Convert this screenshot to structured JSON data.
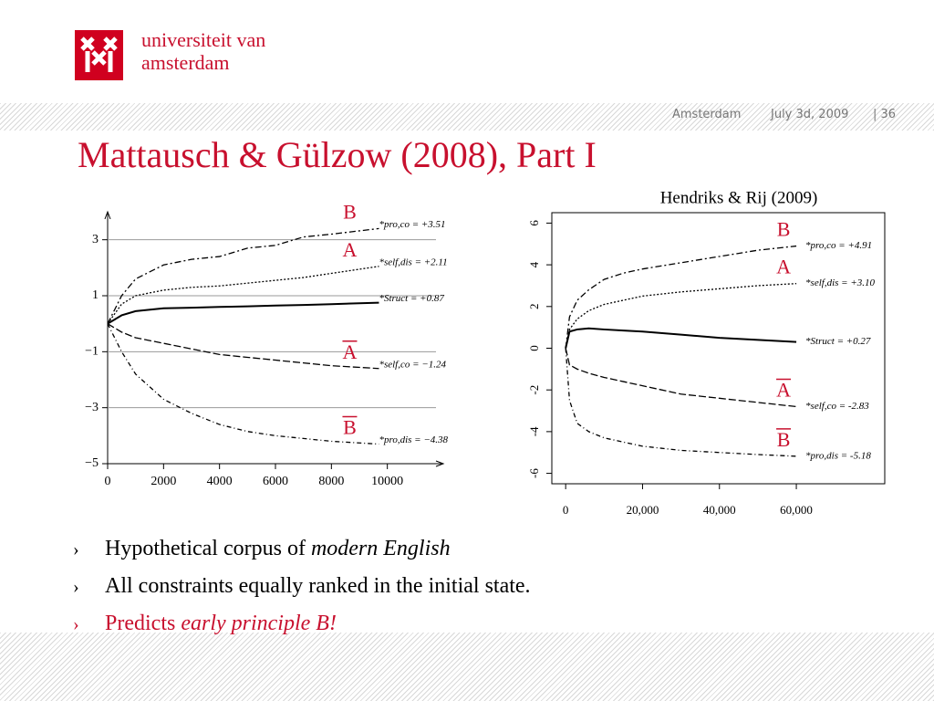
{
  "header": {
    "logo_line1": "universiteit van",
    "logo_line2": "amsterdam",
    "place": "Amsterdam",
    "date": "July 3d, 2009",
    "page": "| 36"
  },
  "title": "Mattausch & Gülzow (2008), Part I",
  "bullets": [
    {
      "text": "Hypothetical corpus of ",
      "em": "modern English"
    },
    {
      "text": "All constraints equally ranked in the initial state."
    },
    {
      "text": "Predicts ",
      "em": "early principle B!"
    }
  ],
  "chart_data": [
    {
      "type": "line",
      "xlim": [
        0,
        12000
      ],
      "ylim": [
        -5,
        4
      ],
      "xticks": [
        0,
        2000,
        4000,
        6000,
        8000,
        10000
      ],
      "yticks": [
        3,
        1,
        {
          "value": -1,
          "label": "−1"
        },
        {
          "value": -3,
          "label": "−3"
        },
        {
          "value": -5,
          "label": "−5"
        }
      ],
      "grid": true,
      "x": [
        0,
        500,
        1000,
        2000,
        3000,
        4000,
        5000,
        6000,
        7000,
        8000,
        9700
      ],
      "series": [
        {
          "name": "*pro,co = +3.51",
          "color": "#000000",
          "letter": "B",
          "overline": false,
          "values": [
            0,
            1.0,
            1.6,
            2.1,
            2.3,
            2.4,
            2.7,
            2.8,
            3.1,
            3.2,
            3.4
          ]
        },
        {
          "name": "*self,dis = +2.11",
          "color": "#000000",
          "letter": "A",
          "overline": false,
          "values": [
            0,
            0.7,
            1.0,
            1.2,
            1.3,
            1.35,
            1.45,
            1.55,
            1.65,
            1.8,
            2.05
          ]
        },
        {
          "name": "*Struct = +0.87",
          "color": "#000000",
          "values": [
            0,
            0.3,
            0.45,
            0.55,
            0.57,
            0.6,
            0.62,
            0.65,
            0.67,
            0.7,
            0.75
          ]
        },
        {
          "name": "*self,co = −1.24",
          "color": "#000000",
          "letter": "A",
          "overline": true,
          "values": [
            0,
            -0.3,
            -0.5,
            -0.7,
            -0.9,
            -1.1,
            -1.2,
            -1.3,
            -1.4,
            -1.5,
            -1.6
          ]
        },
        {
          "name": "*pro,dis = −4.38",
          "color": "#000000",
          "letter": "B",
          "overline": true,
          "values": [
            0,
            -1.0,
            -1.8,
            -2.7,
            -3.2,
            -3.6,
            -3.85,
            -4.0,
            -4.1,
            -4.2,
            -4.3
          ]
        }
      ]
    },
    {
      "type": "line",
      "title": "Hendriks & Rij (2009)",
      "xlim": [
        -3600,
        83000
      ],
      "ylim": [
        -6.5,
        6.5
      ],
      "xticks": [
        0,
        {
          "value": 20000,
          "label": "20,000"
        },
        {
          "value": 40000,
          "label": "40,000"
        },
        {
          "value": 60000,
          "label": "60,000"
        }
      ],
      "yticks": [
        -6,
        -4,
        -2,
        0,
        2,
        4,
        6
      ],
      "grid": false,
      "x": [
        0,
        1000,
        3000,
        6000,
        10000,
        15000,
        20000,
        30000,
        40000,
        50000,
        60000
      ],
      "series": [
        {
          "name": "*pro,co = +4.91",
          "color": "#000000",
          "letter": "B",
          "overline": false,
          "values": [
            0,
            1.5,
            2.3,
            2.8,
            3.3,
            3.6,
            3.8,
            4.1,
            4.4,
            4.7,
            4.9
          ]
        },
        {
          "name": "*self,dis = +3.10",
          "color": "#000000",
          "letter": "A",
          "overline": false,
          "values": [
            0,
            0.9,
            1.4,
            1.8,
            2.1,
            2.3,
            2.5,
            2.7,
            2.85,
            3.0,
            3.1
          ]
        },
        {
          "name": "*Struct = +0.27",
          "color": "#000000",
          "values": [
            0,
            0.8,
            0.9,
            0.95,
            0.9,
            0.85,
            0.8,
            0.65,
            0.5,
            0.4,
            0.3
          ]
        },
        {
          "name": "*self,co = -2.83",
          "color": "#000000",
          "letter": "A",
          "overline": true,
          "values": [
            0,
            -0.8,
            -1.0,
            -1.2,
            -1.4,
            -1.6,
            -1.8,
            -2.2,
            -2.4,
            -2.6,
            -2.8
          ]
        },
        {
          "name": "*pro,dis = -5.18",
          "color": "#000000",
          "letter": "B",
          "overline": true,
          "values": [
            0,
            -2.5,
            -3.6,
            -4.0,
            -4.3,
            -4.5,
            -4.7,
            -4.9,
            -5.0,
            -5.1,
            -5.18
          ]
        }
      ]
    }
  ]
}
